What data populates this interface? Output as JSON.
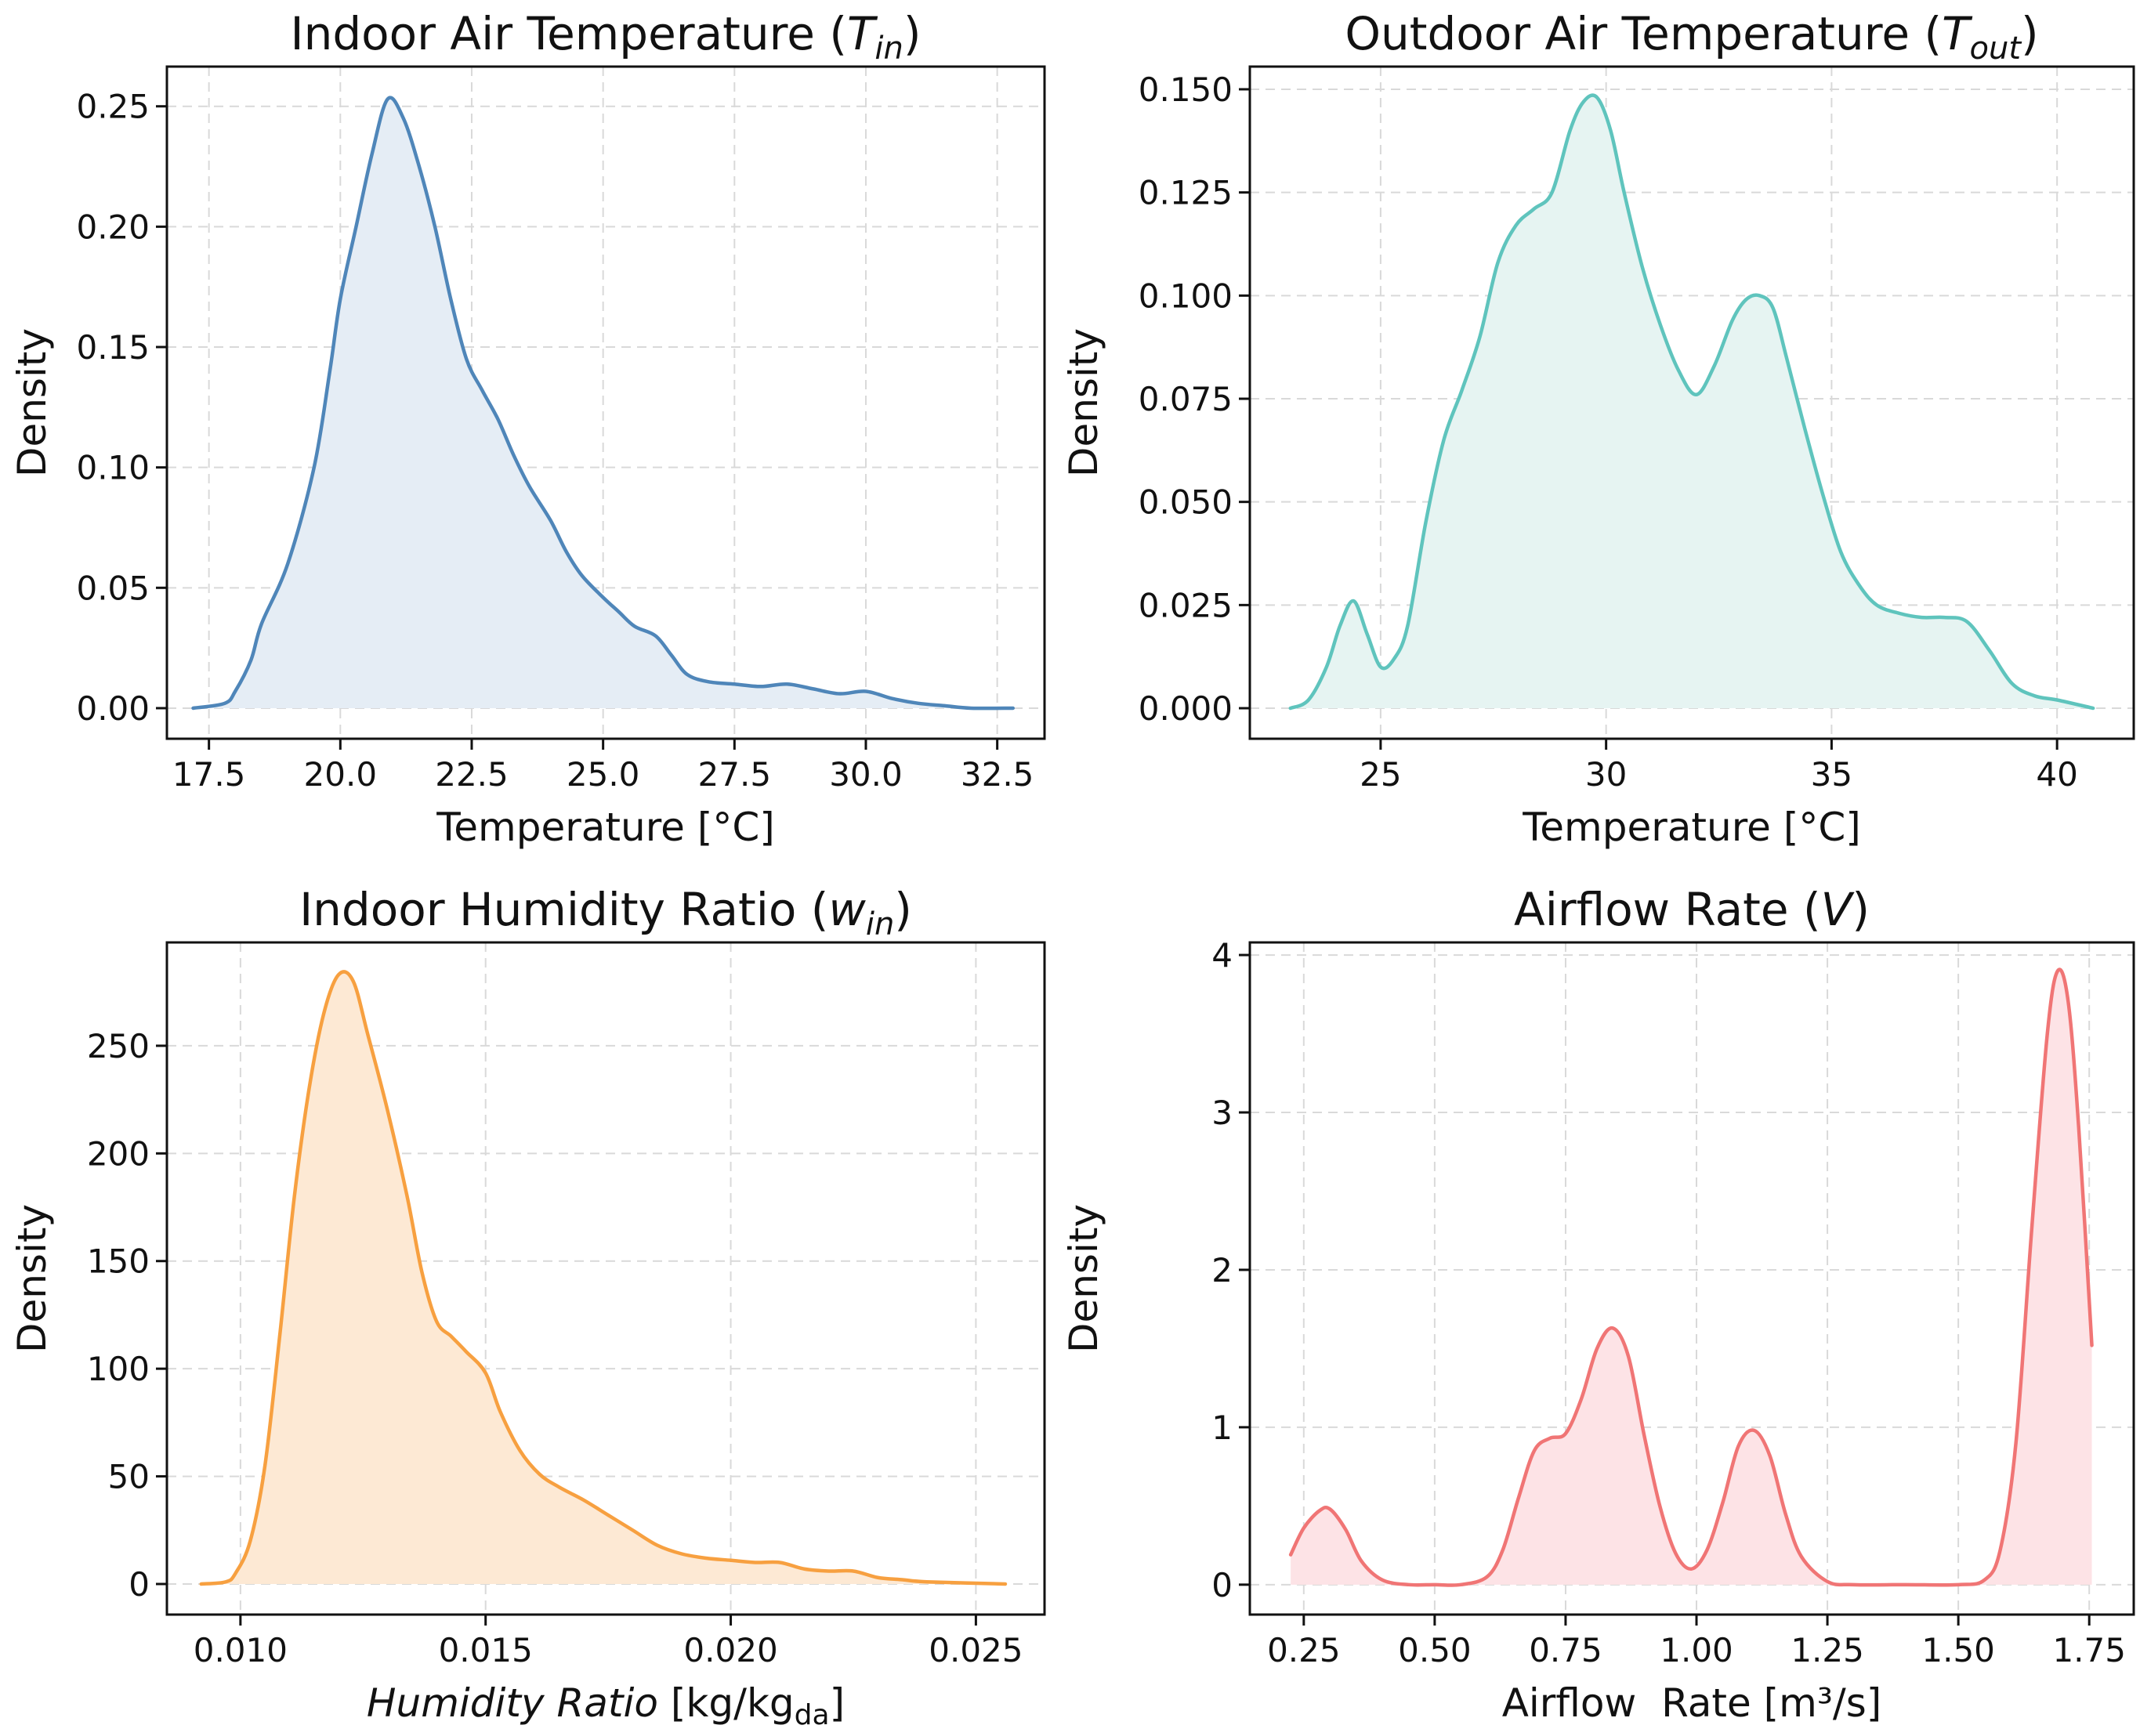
{
  "chart_data": [
    {
      "type": "line",
      "kind": "density",
      "title": "Indoor Air Temperature (T_in)",
      "title_parts": {
        "main": "Indoor Air Temperature (",
        "var": "T",
        "sub": "in",
        "close": ")"
      },
      "xlabel": "Temperature [°C]",
      "ylabel": "Density",
      "xlim": [
        16.7,
        33.4
      ],
      "ylim": [
        -0.0127,
        0.2665
      ],
      "xticks": [
        17.5,
        20.0,
        22.5,
        25.0,
        27.5,
        30.0,
        32.5
      ],
      "xtick_labels": [
        "17.5",
        "20.0",
        "22.5",
        "25.0",
        "27.5",
        "30.0",
        "32.5"
      ],
      "yticks": [
        0.0,
        0.05,
        0.1,
        0.15,
        0.2,
        0.25
      ],
      "ytick_labels": [
        "0.00",
        "0.05",
        "0.10",
        "0.15",
        "0.20",
        "0.25"
      ],
      "grid": true,
      "color": "#4f86b9",
      "fill_color": "#e5edf5",
      "series": [
        {
          "name": "T_in",
          "x": [
            17.2,
            17.8,
            18.0,
            18.3,
            18.5,
            19.0,
            19.5,
            19.8,
            20.0,
            20.3,
            20.6,
            20.9,
            21.2,
            21.5,
            21.8,
            22.1,
            22.4,
            22.7,
            23.0,
            23.3,
            23.6,
            24.0,
            24.3,
            24.6,
            25.0,
            25.3,
            25.6,
            26.0,
            26.3,
            26.6,
            27.0,
            27.5,
            28.0,
            28.5,
            29.0,
            29.5,
            30.0,
            30.5,
            31.0,
            31.5,
            32.0,
            32.8
          ],
          "y": [
            0.0,
            0.002,
            0.007,
            0.02,
            0.035,
            0.06,
            0.1,
            0.14,
            0.17,
            0.2,
            0.23,
            0.253,
            0.245,
            0.225,
            0.2,
            0.17,
            0.145,
            0.132,
            0.12,
            0.105,
            0.092,
            0.078,
            0.065,
            0.055,
            0.046,
            0.04,
            0.034,
            0.03,
            0.022,
            0.014,
            0.011,
            0.01,
            0.009,
            0.01,
            0.008,
            0.006,
            0.007,
            0.004,
            0.002,
            0.001,
            0.0,
            0.0
          ]
        }
      ]
    },
    {
      "type": "line",
      "kind": "density",
      "title": "Outdoor Air Temperature (T_out)",
      "title_parts": {
        "main": "Outdoor Air Temperature (",
        "var": "T",
        "sub": "out",
        "close": ")"
      },
      "xlabel": "Temperature [°C]",
      "ylabel": "Density",
      "xlim": [
        22.1,
        41.7
      ],
      "ylim": [
        -0.0074,
        0.1555
      ],
      "xticks": [
        25,
        30,
        35,
        40
      ],
      "xtick_labels": [
        "25",
        "30",
        "35",
        "40"
      ],
      "yticks": [
        0.0,
        0.025,
        0.05,
        0.075,
        0.1,
        0.125,
        0.15
      ],
      "ytick_labels": [
        "0.000",
        "0.025",
        "0.050",
        "0.075",
        "0.100",
        "0.125",
        "0.150"
      ],
      "grid": true,
      "color": "#5fc4bd",
      "fill_color": "#e6f4f2",
      "series": [
        {
          "name": "T_out",
          "x": [
            23.0,
            23.4,
            23.8,
            24.1,
            24.4,
            24.7,
            25.0,
            25.3,
            25.6,
            26.0,
            26.4,
            26.8,
            27.2,
            27.6,
            28.0,
            28.4,
            28.8,
            29.2,
            29.5,
            29.8,
            30.1,
            30.4,
            30.8,
            31.2,
            31.6,
            32.0,
            32.4,
            32.8,
            33.1,
            33.4,
            33.7,
            34.0,
            34.4,
            34.8,
            35.2,
            35.6,
            36.0,
            36.5,
            37.0,
            37.5,
            38.0,
            38.5,
            39.0,
            39.5,
            40.0,
            40.8
          ],
          "y": [
            0.0,
            0.002,
            0.01,
            0.02,
            0.026,
            0.018,
            0.01,
            0.012,
            0.02,
            0.045,
            0.065,
            0.077,
            0.09,
            0.108,
            0.117,
            0.121,
            0.125,
            0.14,
            0.147,
            0.148,
            0.14,
            0.125,
            0.107,
            0.093,
            0.082,
            0.076,
            0.083,
            0.094,
            0.099,
            0.1,
            0.097,
            0.085,
            0.068,
            0.052,
            0.038,
            0.03,
            0.025,
            0.023,
            0.022,
            0.022,
            0.021,
            0.014,
            0.006,
            0.003,
            0.002,
            0.0
          ]
        }
      ]
    },
    {
      "type": "line",
      "kind": "density",
      "title": "Indoor Humidity Ratio (w_in)",
      "title_parts": {
        "main": "Indoor Humidity Ratio (",
        "var": "w",
        "sub": "in",
        "close": ")"
      },
      "xlabel": "Humidity Ratio [kg/kg_da]",
      "xlabel_parts": {
        "italic": "Humidity Ratio",
        "rest": " [kg/kg",
        "sub": "da",
        "close": "]"
      },
      "ylabel": "Density",
      "xlim": [
        0.0085,
        0.0264
      ],
      "ylim": [
        -14.2,
        298.0
      ],
      "xticks": [
        0.01,
        0.015,
        0.02,
        0.025
      ],
      "xtick_labels": [
        "0.010",
        "0.015",
        "0.020",
        "0.025"
      ],
      "yticks": [
        0,
        50,
        100,
        150,
        200,
        250
      ],
      "ytick_labels": [
        "0",
        "50",
        "100",
        "150",
        "200",
        "250"
      ],
      "grid": true,
      "color": "#f7a040",
      "fill_color": "#fde9d4",
      "series": [
        {
          "name": "w_in",
          "x": [
            0.0092,
            0.0097,
            0.0099,
            0.0102,
            0.0105,
            0.0108,
            0.0111,
            0.0114,
            0.0117,
            0.012,
            0.0123,
            0.0126,
            0.013,
            0.0134,
            0.0137,
            0.014,
            0.0143,
            0.0146,
            0.015,
            0.0153,
            0.0157,
            0.0161,
            0.0165,
            0.017,
            0.0175,
            0.018,
            0.0185,
            0.019,
            0.0195,
            0.02,
            0.0205,
            0.021,
            0.0215,
            0.022,
            0.0225,
            0.023,
            0.0235,
            0.024,
            0.0256
          ],
          "y": [
            0.0,
            1.0,
            5.0,
            20.0,
            55.0,
            115.0,
            180.0,
            230.0,
            265.0,
            283.0,
            280.0,
            255.0,
            220.0,
            180.0,
            145.0,
            122.0,
            115.0,
            108.0,
            98.0,
            80.0,
            62.0,
            51.0,
            45.0,
            39.0,
            32.0,
            25.0,
            18.0,
            14.0,
            12.0,
            11.0,
            10.0,
            10.0,
            7.0,
            6.0,
            6.0,
            3.0,
            2.0,
            1.0,
            0.0
          ]
        }
      ]
    },
    {
      "type": "line",
      "kind": "density",
      "title": "Airflow Rate (V̇)",
      "title_parts": {
        "main": "Airflow Rate (",
        "var": "V",
        "dot": "˙",
        "close": ")"
      },
      "xlabel": "Airflow  Rate [m³/s]",
      "ylabel": "Density",
      "xlim": [
        0.147,
        1.835
      ],
      "ylim": [
        -0.19,
        4.08
      ],
      "xticks": [
        0.25,
        0.5,
        0.75,
        1.0,
        1.25,
        1.5,
        1.75
      ],
      "xtick_labels": [
        "0.25",
        "0.50",
        "0.75",
        "1.00",
        "1.25",
        "1.50",
        "1.75"
      ],
      "yticks": [
        0,
        1,
        2,
        3,
        4
      ],
      "ytick_labels": [
        "0",
        "1",
        "2",
        "3",
        "4"
      ],
      "grid": true,
      "color": "#f07575",
      "fill_color": "#fde3e6",
      "series": [
        {
          "name": "Airflow",
          "x": [
            0.225,
            0.25,
            0.28,
            0.3,
            0.33,
            0.36,
            0.4,
            0.45,
            0.5,
            0.55,
            0.6,
            0.63,
            0.66,
            0.69,
            0.72,
            0.75,
            0.78,
            0.81,
            0.84,
            0.87,
            0.9,
            0.93,
            0.96,
            0.99,
            1.02,
            1.05,
            1.08,
            1.11,
            1.14,
            1.17,
            1.2,
            1.25,
            1.3,
            1.4,
            1.5,
            1.55,
            1.58,
            1.61,
            1.64,
            1.67,
            1.69,
            1.71,
            1.73,
            1.755
          ],
          "y": [
            0.19,
            0.36,
            0.47,
            0.48,
            0.35,
            0.15,
            0.03,
            0.0,
            0.0,
            0.0,
            0.05,
            0.22,
            0.55,
            0.85,
            0.93,
            0.96,
            1.18,
            1.5,
            1.63,
            1.45,
            0.95,
            0.5,
            0.2,
            0.1,
            0.22,
            0.52,
            0.88,
            0.98,
            0.82,
            0.45,
            0.18,
            0.02,
            0.0,
            0.0,
            0.0,
            0.03,
            0.22,
            0.9,
            2.25,
            3.5,
            3.9,
            3.7,
            2.9,
            1.52
          ]
        }
      ]
    }
  ]
}
